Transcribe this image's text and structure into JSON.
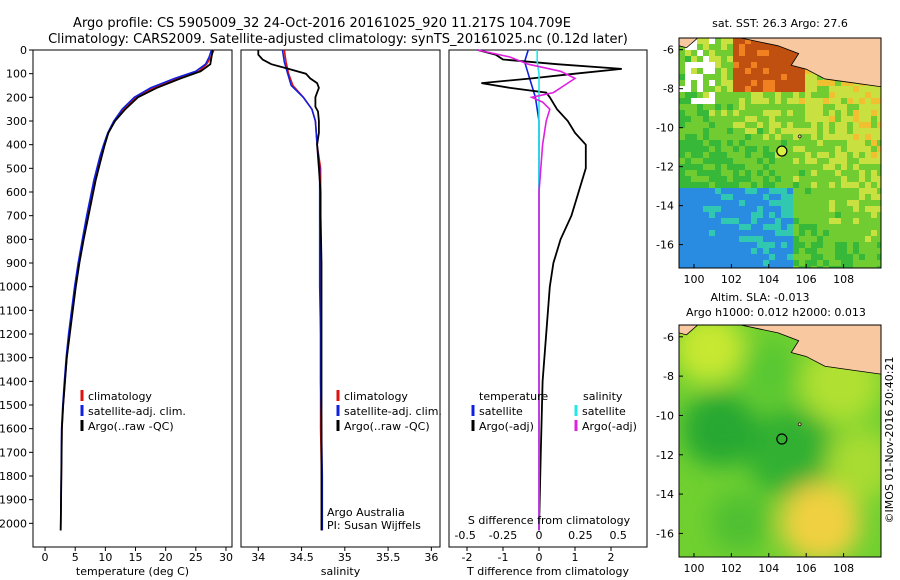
{
  "header": {
    "line1": "Argo profile: CS 5905009_32 24-Oct-2016 20161025_920 11.217S 104.709E",
    "line2": "Climatology: CARS2009. Satellite-adjusted climatology: synTS_20161025.nc (0.12d later)"
  },
  "side_label": "©IMOS 01-Nov-2016 20:40:21",
  "colors": {
    "climatology": "#e01010",
    "satellite": "#1020e0",
    "argo": "#000000",
    "sal_satellite": "#20e8e8",
    "sal_argo": "#e020e0",
    "land": "#f8c8a0"
  },
  "chart_data": [
    {
      "type": "line",
      "xlabel": "temperature (deg C)",
      "xlim": [
        -2,
        31
      ],
      "ylim": [
        0,
        2100
      ],
      "xticks": [
        0,
        5,
        10,
        15,
        20,
        25,
        30
      ],
      "yticks": [
        0,
        100,
        200,
        300,
        400,
        500,
        600,
        700,
        800,
        900,
        1000,
        1100,
        1200,
        1300,
        1400,
        1500,
        1600,
        1700,
        1800,
        1900,
        2000
      ],
      "legend": [
        "climatology",
        "satellite-adj. clim.",
        "Argo(..raw -QC)"
      ],
      "legend_position": "lower-center",
      "series": [
        {
          "name": "climatology",
          "color": "#e01010",
          "x": [
            28.0,
            27.5,
            26.8,
            25.5,
            22.0,
            18.0,
            15.0,
            13.0,
            11.5,
            10.5,
            9.8,
            9.2,
            8.7,
            8.2,
            7.8,
            7.0,
            6.3,
            5.6,
            5.0,
            4.5,
            4.0,
            3.6,
            3.3,
            3.0,
            2.8,
            2.6
          ],
          "y": [
            0,
            30,
            60,
            90,
            120,
            160,
            200,
            250,
            300,
            350,
            400,
            450,
            500,
            550,
            600,
            700,
            800,
            900,
            1000,
            1100,
            1200,
            1300,
            1400,
            1500,
            1600,
            2030
          ]
        },
        {
          "name": "satellite-adj. clim.",
          "color": "#1020e0",
          "x": [
            27.6,
            27.2,
            26.6,
            25.0,
            21.5,
            17.5,
            14.8,
            12.8,
            11.4,
            10.4,
            9.7,
            9.1,
            8.6,
            8.1,
            7.7,
            6.9,
            6.2,
            5.5,
            4.9,
            4.4,
            3.9,
            3.5,
            3.2,
            2.95,
            2.75,
            2.6
          ],
          "y": [
            0,
            30,
            60,
            90,
            120,
            160,
            200,
            250,
            300,
            350,
            400,
            450,
            500,
            550,
            600,
            700,
            800,
            900,
            1000,
            1100,
            1200,
            1300,
            1400,
            1500,
            1600,
            2030
          ]
        },
        {
          "name": "Argo(..raw -QC)",
          "color": "#000000",
          "x": [
            27.8,
            27.6,
            27.4,
            25.8,
            22.5,
            18.5,
            15.4,
            13.3,
            11.6,
            10.5,
            9.9,
            9.4,
            8.9,
            8.4,
            8.0,
            7.2,
            6.4,
            5.7,
            5.1,
            4.6,
            4.1,
            3.6,
            3.3,
            3.0,
            2.8,
            2.6
          ],
          "y": [
            0,
            30,
            60,
            90,
            120,
            160,
            200,
            250,
            300,
            350,
            400,
            450,
            500,
            550,
            600,
            700,
            800,
            900,
            1000,
            1100,
            1200,
            1300,
            1400,
            1500,
            1600,
            2030
          ]
        }
      ]
    },
    {
      "type": "line",
      "xlabel": "salinity",
      "xlim": [
        33.8,
        36.1
      ],
      "ylim": [
        0,
        2100
      ],
      "xticks": [
        34,
        34.5,
        35,
        35.5,
        36
      ],
      "xticklabels": [
        "34",
        "34.5",
        "35",
        "35.5",
        "36"
      ],
      "legend": [
        "climatology",
        "satellite-adj. clim.",
        "Argo(..raw -QC)"
      ],
      "legend_position": "lower-right",
      "annotation": [
        "Argo Australia",
        "PI: Susan Wijffels"
      ],
      "series": [
        {
          "name": "climatology",
          "color": "#e01010",
          "x": [
            34.3,
            34.32,
            34.35,
            34.4,
            34.52,
            34.62,
            34.66,
            34.68,
            34.72,
            34.72,
            34.72,
            34.72,
            34.72,
            34.72,
            34.72,
            34.73,
            34.73
          ],
          "y": [
            0,
            50,
            100,
            150,
            200,
            250,
            300,
            400,
            500,
            600,
            800,
            1000,
            1200,
            1400,
            1600,
            1800,
            2030
          ]
        },
        {
          "name": "satellite-adj. clim.",
          "color": "#1020e0",
          "x": [
            34.28,
            34.3,
            34.34,
            34.38,
            34.52,
            34.62,
            34.66,
            34.68,
            34.71,
            34.71,
            34.71,
            34.71,
            34.72,
            34.72,
            34.73,
            34.74,
            34.74
          ],
          "y": [
            0,
            50,
            100,
            150,
            200,
            250,
            300,
            400,
            500,
            600,
            800,
            1000,
            1200,
            1400,
            1600,
            1800,
            2030
          ]
        },
        {
          "name": "Argo(..raw -QC)",
          "color": "#000000",
          "x": [
            34.0,
            34.0,
            34.05,
            34.15,
            34.35,
            34.55,
            34.6,
            34.68,
            34.7,
            34.68,
            34.66,
            34.66,
            34.66,
            34.69,
            34.7,
            34.7,
            34.68,
            34.7,
            34.72,
            34.72,
            34.73,
            34.73,
            34.73,
            34.73
          ],
          "y": [
            0,
            20,
            40,
            60,
            80,
            100,
            120,
            140,
            160,
            180,
            200,
            220,
            240,
            260,
            300,
            350,
            400,
            500,
            600,
            700,
            900,
            1200,
            1600,
            2030
          ]
        }
      ]
    },
    {
      "type": "line",
      "xlabel": "T difference from climatology",
      "xlabel_secondary": "S difference from climatology",
      "xlim": [
        -2.5,
        3
      ],
      "ylim": [
        0,
        2100
      ],
      "xticks": [
        -2,
        -1,
        0,
        1,
        2
      ],
      "xticks_secondary": [
        "-0.5",
        "-0.25",
        "0",
        "0.25",
        "0.5"
      ],
      "legend_left": [
        "temperature",
        "satellite",
        "Argo(-adj)"
      ],
      "legend_right": [
        "salinity",
        "satellite",
        "Argo(-adj)"
      ],
      "legend_position": "lower-center",
      "series": [
        {
          "name": "satellite",
          "color": "#1020e0",
          "x": [
            -0.3,
            -0.4,
            -0.3,
            -0.2,
            -0.1,
            0,
            0,
            0,
            0,
            0,
            0
          ],
          "y": [
            0,
            50,
            100,
            150,
            200,
            300,
            500,
            800,
            1200,
            1600,
            2030
          ]
        },
        {
          "name": "Argo(-adj)",
          "color": "#000000",
          "x": [
            -1.7,
            -1.2,
            -1.0,
            0.5,
            2.3,
            1.0,
            -0.2,
            -1.6,
            -0.8,
            0.2,
            0.3,
            0.5,
            0.8,
            1.0,
            1.3,
            1.3,
            1.1,
            0.9,
            0.6,
            0.4,
            0.3,
            0.2,
            0.1,
            0.05,
            0.0
          ],
          "y": [
            0,
            20,
            40,
            60,
            80,
            100,
            120,
            140,
            160,
            180,
            200,
            250,
            300,
            350,
            400,
            500,
            600,
            700,
            800,
            900,
            1000,
            1200,
            1400,
            1700,
            2030
          ]
        },
        {
          "name": "satellite",
          "color": "#20e8e8",
          "x": [
            -0.05,
            -0.05,
            0,
            0,
            0,
            0,
            0,
            0,
            0,
            0,
            0
          ],
          "y": [
            0,
            50,
            100,
            150,
            200,
            300,
            500,
            800,
            1200,
            1600,
            2030
          ]
        },
        {
          "name": "Argo(-adj)",
          "color": "#e020e0",
          "x": [
            -1.7,
            -0.8,
            -0.3,
            0.6,
            1.0,
            0.7,
            0.4,
            -0.2,
            0.1,
            0.3,
            0.2,
            0.1,
            0.0,
            0.0,
            0.0
          ],
          "y": [
            0,
            30,
            60,
            90,
            120,
            150,
            180,
            200,
            220,
            250,
            300,
            400,
            600,
            1000,
            2030
          ]
        }
      ]
    }
  ],
  "maps": [
    {
      "title": "sat. SST: 26.3  Argo: 27.6",
      "subtitle": "",
      "xlim": [
        99.2,
        110.0
      ],
      "ylim": [
        -17.2,
        -5.4
      ],
      "xticks": [
        100,
        102,
        104,
        106,
        108
      ],
      "yticks": [
        -6,
        -8,
        -10,
        -12,
        -14,
        -16
      ],
      "marker": {
        "lon": 104.7,
        "lat": -11.2
      }
    },
    {
      "title": "Altim. SLA: -0.013",
      "subtitle": "Argo h1000: 0.012  h2000: 0.013",
      "xlim": [
        99.2,
        110.0
      ],
      "ylim": [
        -17.2,
        -5.4
      ],
      "xticks": [
        100,
        102,
        104,
        106,
        108
      ],
      "yticks": [
        -6,
        -8,
        -10,
        -12,
        -14,
        -16
      ],
      "marker": {
        "lon": 104.7,
        "lat": -11.2
      }
    }
  ]
}
